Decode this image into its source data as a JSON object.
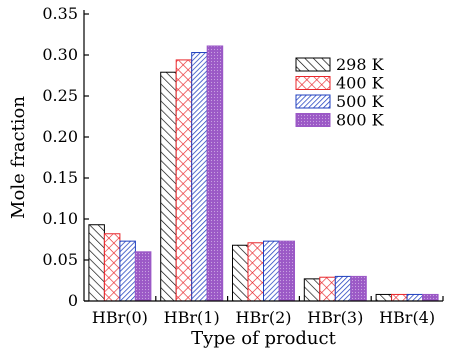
{
  "chart_data": {
    "type": "bar",
    "title": "",
    "xlabel": "Type of product",
    "ylabel": "Mole fraction",
    "ylim": [
      0,
      0.35
    ],
    "yticks": [
      "0",
      "0.05",
      "0.10",
      "0.15",
      "0.20",
      "0.25",
      "0.30",
      "0.35"
    ],
    "categories": [
      "HBr(0)",
      "HBr(1)",
      "HBr(2)",
      "HBr(3)",
      "HBr(4)"
    ],
    "series": [
      {
        "name": "298 K",
        "values": [
          0.093,
          0.279,
          0.068,
          0.027,
          0.008
        ],
        "color": "#000000",
        "pattern": "diagonal-hatch"
      },
      {
        "name": "400 K",
        "values": [
          0.082,
          0.294,
          0.071,
          0.029,
          0.008
        ],
        "color": "#e8262b",
        "pattern": "crosshatch"
      },
      {
        "name": "500 K",
        "values": [
          0.073,
          0.303,
          0.073,
          0.03,
          0.008
        ],
        "color": "#1f3fbf",
        "pattern": "dense-hatch"
      },
      {
        "name": "800 K",
        "values": [
          0.06,
          0.311,
          0.073,
          0.03,
          0.008
        ],
        "color": "#9b59c6",
        "pattern": "dotted-solid"
      }
    ],
    "legend_position": "top-right",
    "grid": false
  }
}
